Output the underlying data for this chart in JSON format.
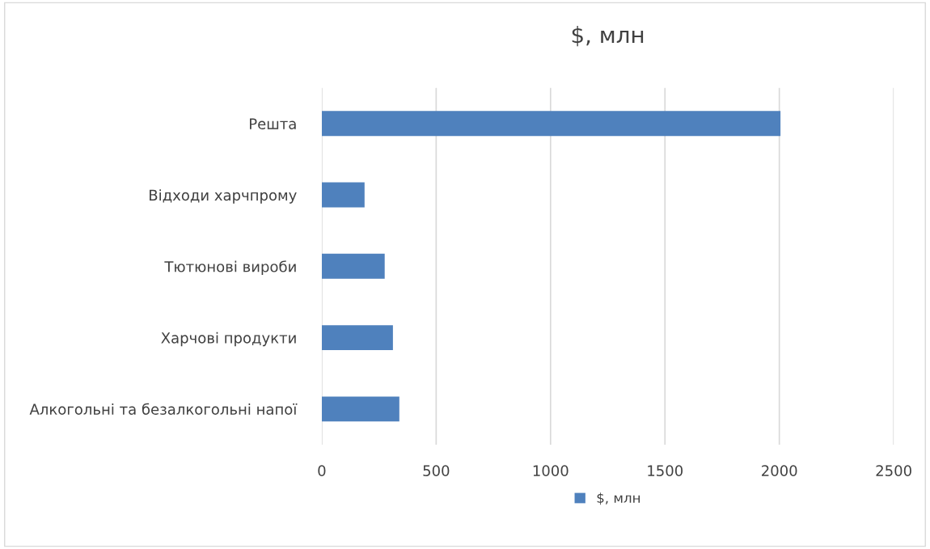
{
  "chart_data": {
    "type": "bar",
    "orientation": "horizontal",
    "title": "$, млн",
    "categories": [
      "Решта",
      "Відходи харчпрому",
      "Тютюнові вироби",
      "Харчові продукти",
      "Алкогольні та безалкогольні напої"
    ],
    "series": [
      {
        "name": "$, млн",
        "color": "#4f81bd",
        "values": [
          2005,
          187,
          275,
          311,
          339
        ]
      }
    ],
    "xlim": [
      0,
      2500
    ],
    "xticks": [
      0,
      500,
      1000,
      1500,
      2000,
      2500
    ],
    "grid": "x",
    "legend": "bottom"
  }
}
